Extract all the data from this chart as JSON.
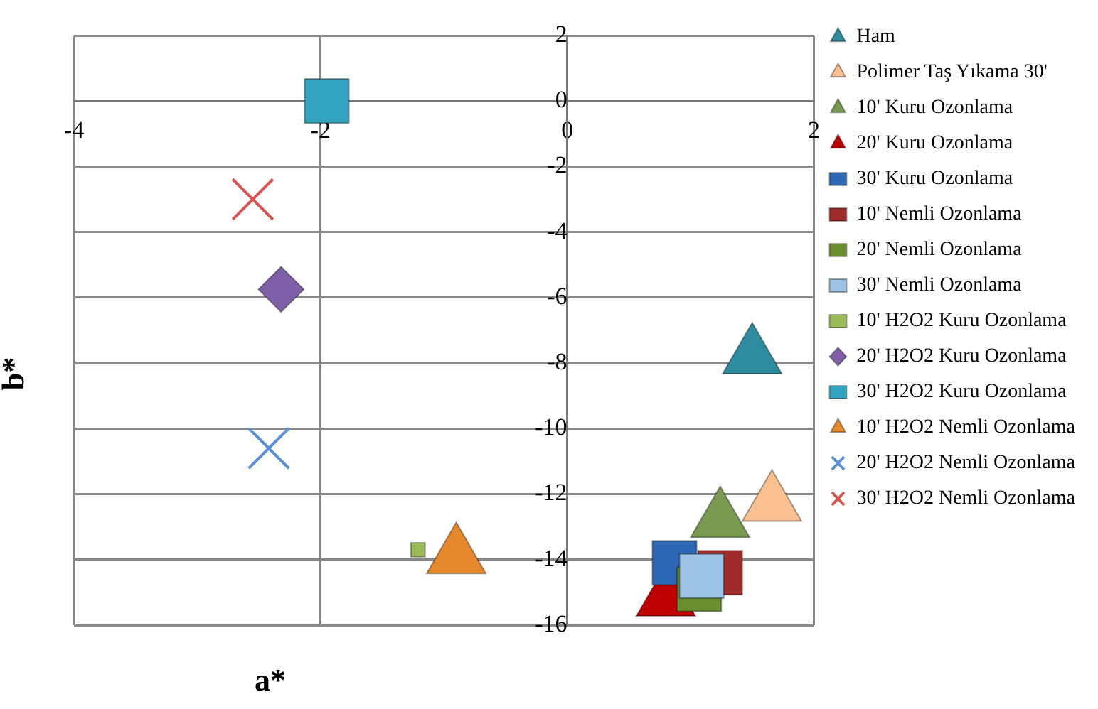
{
  "chart_data": {
    "type": "scatter",
    "xlabel": "a*",
    "ylabel": "b*",
    "xlim": [
      -4,
      2
    ],
    "ylim": [
      -16,
      2
    ],
    "xticks": [
      -4,
      -2,
      0,
      2
    ],
    "yticks": [
      -16,
      -14,
      -12,
      -10,
      -8,
      -6,
      -4,
      -2,
      0,
      2
    ],
    "grid": true,
    "legend": "right",
    "series": [
      {
        "name": "Ham",
        "color": "#2e8ba0",
        "marker": "triangle",
        "x": [
          1.5
        ],
        "values": [
          -7.8
        ]
      },
      {
        "name": "Polimer Taş Yıkama 30'",
        "color": "#fac090",
        "marker": "triangle",
        "x": [
          1.66
        ],
        "values": [
          -12.3
        ]
      },
      {
        "name": "10' Kuru Ozonlama",
        "color": "#7a9a50",
        "marker": "triangle",
        "x": [
          1.24
        ],
        "values": [
          -12.8
        ]
      },
      {
        "name": "20' Kuru Ozonlama",
        "color": "#c00000",
        "marker": "triangle",
        "x": [
          0.8
        ],
        "values": [
          -15.2
        ]
      },
      {
        "name": "30' Kuru Ozonlama",
        "color": "#2e67b4",
        "marker": "square",
        "x": [
          0.87
        ],
        "values": [
          -14.1
        ]
      },
      {
        "name": "10' Nemli Ozonlama",
        "color": "#a02b2b",
        "marker": "square",
        "x": [
          1.24
        ],
        "values": [
          -14.4
        ]
      },
      {
        "name": "20' Nemli Ozonlama",
        "color": "#6b8e30",
        "marker": "square",
        "x": [
          1.07
        ],
        "values": [
          -14.9
        ]
      },
      {
        "name": "30' Nemli Ozonlama",
        "color": "#9dc3e6",
        "marker": "square",
        "x": [
          1.09
        ],
        "values": [
          -14.5
        ]
      },
      {
        "name": "10' H2O2 Kuru Ozonlama",
        "color": "#9bbb59",
        "marker": "square",
        "x": [
          -1.21
        ],
        "values": [
          -13.7
        ]
      },
      {
        "name": "20' H2O2 Kuru Ozonlama",
        "color": "#7f5fa8",
        "marker": "diamond",
        "x": [
          -2.32
        ],
        "values": [
          -5.75
        ]
      },
      {
        "name": "30' H2O2 Kuru Ozonlama",
        "color": "#31a5c0",
        "marker": "square",
        "x": [
          -1.95
        ],
        "values": [
          0
        ]
      },
      {
        "name": "10' H2O2 Nemli Ozonlama",
        "color": "#e6892c",
        "marker": "triangle",
        "x": [
          -0.9
        ],
        "values": [
          -13.9
        ]
      },
      {
        "name": "20' H2O2 Nemli Ozonlama",
        "color": "#5b8fd6",
        "marker": "cross",
        "x": [
          -2.42
        ],
        "values": [
          -10.6
        ]
      },
      {
        "name": "30' H2O2 Nemli Ozonlama",
        "color": "#d9534f",
        "marker": "cross",
        "x": [
          -2.55
        ],
        "values": [
          -3.0
        ]
      }
    ]
  }
}
